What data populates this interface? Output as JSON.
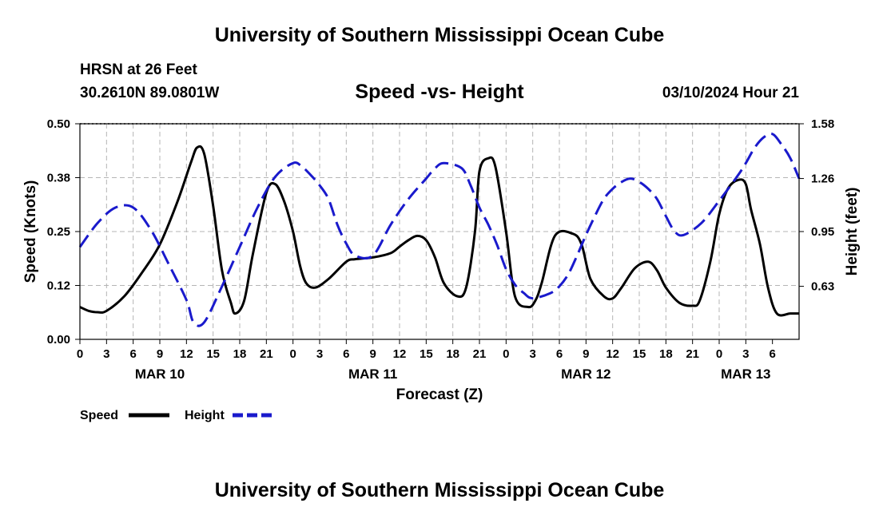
{
  "header": {
    "title": "University of Southern Mississippi Ocean Cube",
    "station": "HRSN at 26 Feet",
    "coords": "30.2610N  89.0801W",
    "subtitle": "Speed -vs- Height",
    "datetime": "03/10/2024 Hour 21"
  },
  "footer": {
    "title": "University of Southern Mississippi Ocean Cube"
  },
  "chart_data": {
    "type": "line",
    "xlabel": "Forecast (Z)",
    "ylabel": "Speed (Knots)",
    "ylabel_right": "Height (feet)",
    "xlim": [
      0,
      81
    ],
    "ylim": [
      0,
      0.5
    ],
    "ylim_right": [
      0.32,
      1.58
    ],
    "grid": true,
    "yticks": [
      "0.00",
      "0.12",
      "0.25",
      "0.38",
      "0.50"
    ],
    "yticks_right": [
      "0.63",
      "0.95",
      "1.26",
      "1.58"
    ],
    "xtick_labels": [
      "0",
      "3",
      "6",
      "9",
      "12",
      "15",
      "18",
      "21",
      "0",
      "3",
      "6",
      "9",
      "12",
      "15",
      "18",
      "21",
      "0",
      "3",
      "6",
      "9",
      "12",
      "15",
      "18",
      "21",
      "0",
      "3",
      "6"
    ],
    "date_labels": [
      {
        "hour": 9,
        "label": "MAR 10"
      },
      {
        "hour": 33,
        "label": "MAR 11"
      },
      {
        "hour": 57,
        "label": "MAR 12"
      },
      {
        "hour": 75,
        "label": "MAR 13"
      }
    ],
    "legend": {
      "position": "bottom-left",
      "entries": [
        "Speed",
        "Height"
      ]
    },
    "series": [
      {
        "name": "Speed",
        "axis": "left",
        "color": "#000000",
        "style": "solid",
        "x": [
          0,
          1,
          2,
          3,
          5,
          7,
          9,
          11,
          12.5,
          13.2,
          14,
          15,
          16,
          17,
          17.5,
          18.5,
          19.5,
          21,
          22,
          23,
          24,
          24.8,
          25.5,
          26.5,
          28,
          30,
          31,
          33,
          35,
          36,
          37,
          38,
          39,
          40,
          41,
          42.5,
          43.5,
          44.5,
          45,
          46,
          46.8,
          48,
          49,
          50.5,
          51.3,
          52,
          53.5,
          55.5,
          56.5,
          57.5,
          59,
          60,
          61,
          62.5,
          64,
          65,
          66,
          67.5,
          69,
          69.8,
          71,
          72,
          73,
          74.2,
          75,
          75.6,
          76.6,
          77.5,
          78.5,
          80,
          81
        ],
        "y": [
          0.075,
          0.066,
          0.063,
          0.066,
          0.1,
          0.155,
          0.22,
          0.32,
          0.41,
          0.445,
          0.43,
          0.31,
          0.16,
          0.085,
          0.06,
          0.09,
          0.2,
          0.34,
          0.36,
          0.32,
          0.25,
          0.17,
          0.13,
          0.12,
          0.14,
          0.18,
          0.186,
          0.19,
          0.2,
          0.215,
          0.23,
          0.24,
          0.23,
          0.19,
          0.13,
          0.1,
          0.12,
          0.25,
          0.39,
          0.42,
          0.4,
          0.25,
          0.1,
          0.075,
          0.09,
          0.13,
          0.24,
          0.245,
          0.22,
          0.14,
          0.1,
          0.095,
          0.12,
          0.165,
          0.18,
          0.16,
          0.12,
          0.085,
          0.078,
          0.09,
          0.18,
          0.29,
          0.35,
          0.37,
          0.36,
          0.3,
          0.22,
          0.12,
          0.06,
          0.06,
          0.06
        ]
      },
      {
        "name": "Height",
        "axis": "right",
        "color": "#1a1acc",
        "style": "dashed",
        "x": [
          0,
          2,
          4,
          6,
          8,
          10,
          12,
          12.8,
          14,
          16,
          18,
          20,
          22,
          24,
          25,
          26,
          27,
          28,
          29,
          30,
          31,
          33,
          35,
          37,
          39,
          40,
          41,
          43,
          44,
          45,
          46,
          47,
          48,
          49,
          50,
          51,
          53,
          54,
          55,
          56,
          57,
          58,
          59,
          60,
          61,
          62,
          63,
          64,
          65,
          66,
          67,
          68,
          70,
          72,
          74,
          75,
          76,
          77,
          78,
          79,
          80,
          81
        ],
        "y": [
          0.86,
          1.0,
          1.09,
          1.09,
          0.96,
          0.76,
          0.55,
          0.42,
          0.42,
          0.63,
          0.86,
          1.09,
          1.27,
          1.35,
          1.33,
          1.28,
          1.22,
          1.14,
          0.99,
          0.88,
          0.81,
          0.81,
          0.99,
          1.14,
          1.26,
          1.32,
          1.35,
          1.32,
          1.22,
          1.09,
          0.99,
          0.87,
          0.73,
          0.64,
          0.59,
          0.56,
          0.59,
          0.63,
          0.7,
          0.81,
          0.93,
          1.04,
          1.14,
          1.2,
          1.24,
          1.26,
          1.24,
          1.2,
          1.14,
          1.04,
          0.95,
          0.93,
          1.0,
          1.13,
          1.27,
          1.35,
          1.44,
          1.5,
          1.52,
          1.46,
          1.38,
          1.26
        ]
      }
    ]
  }
}
